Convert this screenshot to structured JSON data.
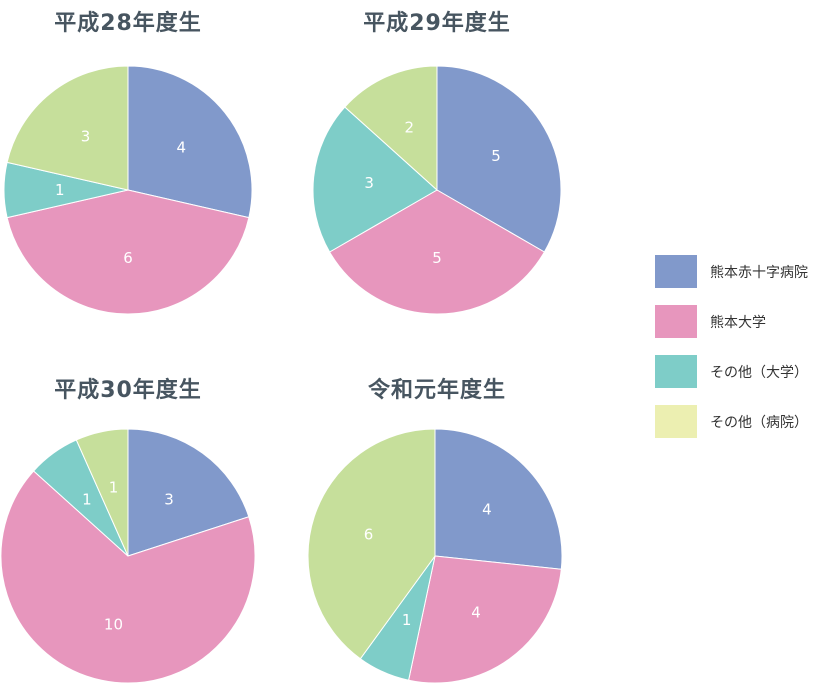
{
  "colors": {
    "kumamoto_red_cross": "#8199cb",
    "kumamoto_university": "#e796bd",
    "other_university": "#7ecdc8",
    "other_hospital": "#c6df9b",
    "legend_other_hospital": "#ecefb1",
    "title": "#475560"
  },
  "legend": {
    "items": [
      {
        "label": "熊本赤十字病院",
        "color": "#8199cb"
      },
      {
        "label": "熊本大学",
        "color": "#e796bd"
      },
      {
        "label": "その他（大学）",
        "color": "#7ecdc8"
      },
      {
        "label": "その他（病院）",
        "color": "#ecefb1"
      }
    ]
  },
  "chart_data": [
    {
      "type": "pie",
      "title": "平成28年度生",
      "categories": [
        "熊本赤十字病院",
        "熊本大学",
        "その他（大学）",
        "その他（病院）"
      ],
      "values": [
        4,
        6,
        1,
        3
      ],
      "slice_colors": [
        "#8199cb",
        "#e796bd",
        "#7ecdc8",
        "#c6df9b"
      ],
      "start": "top",
      "direction": "clockwise"
    },
    {
      "type": "pie",
      "title": "平成29年度生",
      "categories": [
        "熊本赤十字病院",
        "熊本大学",
        "その他（大学）",
        "その他（病院）"
      ],
      "values": [
        5,
        5,
        3,
        2
      ],
      "slice_colors": [
        "#8199cb",
        "#e796bd",
        "#7ecdc8",
        "#c6df9b"
      ],
      "start": "top",
      "direction": "clockwise"
    },
    {
      "type": "pie",
      "title": "平成30年度生",
      "categories": [
        "熊本赤十字病院",
        "熊本大学",
        "その他（大学）",
        "その他（病院）"
      ],
      "values": [
        3,
        10,
        1,
        1
      ],
      "slice_colors": [
        "#8199cb",
        "#e796bd",
        "#7ecdc8",
        "#c6df9b"
      ],
      "start": "top",
      "direction": "clockwise"
    },
    {
      "type": "pie",
      "title": "令和元年度生",
      "categories": [
        "熊本赤十字病院",
        "熊本大学",
        "その他（大学）",
        "その他（病院）"
      ],
      "values": [
        4,
        4,
        1,
        6
      ],
      "slice_colors": [
        "#8199cb",
        "#e796bd",
        "#7ecdc8",
        "#c6df9b"
      ],
      "start": "top",
      "direction": "clockwise"
    }
  ]
}
